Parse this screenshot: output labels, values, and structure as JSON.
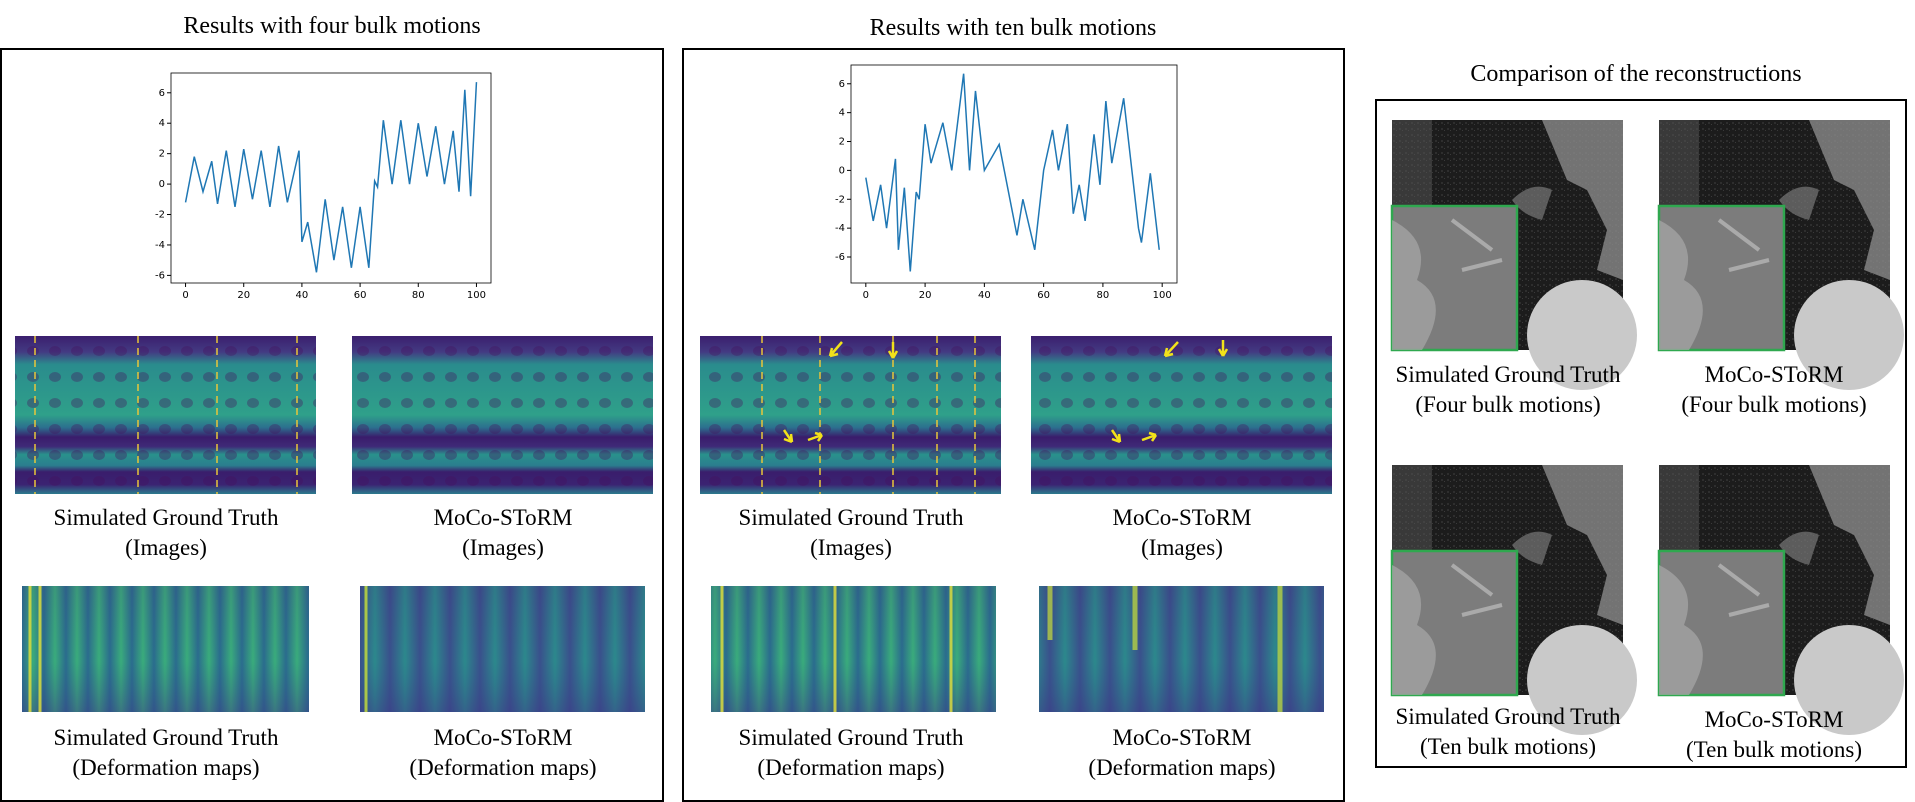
{
  "panels": [
    {
      "title": "Results with four bulk motions",
      "chart": {
        "type": "line",
        "color": "#1f77b4",
        "x": [
          0,
          3,
          6,
          9,
          11,
          14,
          17,
          20,
          23,
          26,
          29,
          32,
          35,
          39,
          40,
          42,
          45,
          48,
          51,
          54,
          57,
          60,
          63,
          65,
          66,
          68,
          71,
          74,
          77,
          80,
          83,
          86,
          89,
          92,
          94,
          96,
          98,
          100
        ],
        "values": [
          -1.2,
          1.8,
          -0.5,
          1.5,
          -1.3,
          2.2,
          -1.5,
          2.3,
          -1,
          2.2,
          -1.5,
          2.5,
          -1.2,
          2.2,
          -3.8,
          -2.5,
          -5.8,
          -1,
          -5,
          -1.5,
          -5.5,
          -1.5,
          -5.5,
          0.2,
          -0.2,
          4.2,
          0,
          4.2,
          0,
          4,
          0.5,
          3.8,
          0,
          3.5,
          -0.5,
          6.2,
          -0.8,
          6.7
        ],
        "xlim": [
          -5,
          105
        ],
        "ylim": [
          -6.5,
          7.3
        ],
        "xticks": [
          0,
          20,
          40,
          60,
          80,
          100
        ],
        "yticks": [
          -6,
          -4,
          -2,
          0,
          2,
          4,
          6
        ]
      },
      "captions": [
        [
          "Simulated Ground Truth",
          "(Images)"
        ],
        [
          "MoCo-SToRM",
          "(Images)"
        ],
        [
          "Simulated Ground Truth",
          "(Deformation maps)"
        ],
        [
          "MoCo-SToRM",
          "(Deformation maps)"
        ]
      ]
    },
    {
      "title": "Results with ten bulk motions",
      "chart": {
        "type": "line",
        "color": "#1f77b4",
        "x": [
          0,
          2.5,
          5,
          7,
          10,
          11,
          13,
          15,
          17,
          18,
          20,
          22,
          26,
          29,
          33,
          35,
          37,
          40,
          45,
          51,
          53,
          57,
          60,
          63,
          65,
          68,
          70,
          72,
          74,
          77,
          79,
          81,
          83,
          87,
          92,
          93,
          96,
          99
        ],
        "values": [
          -0.5,
          -3.5,
          -1,
          -4,
          0.8,
          -5.5,
          -1.2,
          -7,
          -1.5,
          -2,
          3.2,
          0.5,
          3.3,
          0,
          6.7,
          0,
          5.5,
          0,
          1.8,
          -4.5,
          -2,
          -5.5,
          0,
          2.8,
          0,
          3.2,
          -3,
          -1,
          -3.5,
          2.5,
          -1,
          4.8,
          0.5,
          5,
          -4,
          -5,
          -0.2,
          -5.5
        ],
        "xlim": [
          -5,
          105
        ],
        "ylim": [
          -7.8,
          7.3
        ],
        "xticks": [
          0,
          20,
          40,
          60,
          80,
          100
        ],
        "yticks": [
          -6,
          -4,
          -2,
          0,
          2,
          4,
          6
        ]
      },
      "captions": [
        [
          "Simulated Ground Truth",
          "(Images)"
        ],
        [
          "MoCo-SToRM",
          "(Images)"
        ],
        [
          "Simulated Ground Truth",
          "(Deformation maps)"
        ],
        [
          "MoCo-SToRM",
          "(Deformation maps)"
        ]
      ]
    }
  ],
  "comparison": {
    "title": "Comparison of the reconstructions",
    "captions": [
      [
        "Simulated Ground Truth",
        "(Four bulk motions)"
      ],
      [
        "MoCo-SToRM",
        "(Four bulk motions)"
      ],
      [
        "Simulated Ground Truth",
        "(Ten bulk motions)"
      ],
      [
        "MoCo-SToRM",
        "(Ten bulk motions)"
      ]
    ]
  }
}
